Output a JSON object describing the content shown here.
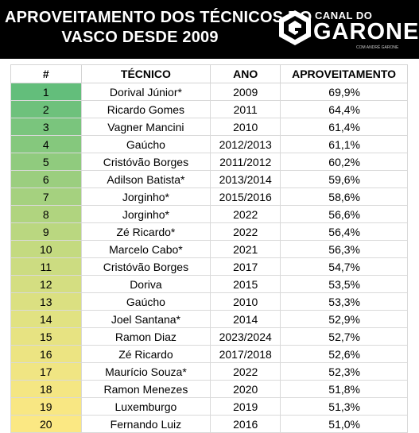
{
  "header": {
    "title_line1": "APROVEITAMENTO DOS TÉCNICOS DO",
    "title_line2": "VASCO DESDE 2009",
    "logo": {
      "top": "CANAL DO",
      "main": "GARONE",
      "sub": "COM ANDRÉ GARONE"
    }
  },
  "table": {
    "columns": [
      "#",
      "TÉCNICO",
      "ANO",
      "APROVEITAMENTO"
    ],
    "rows": [
      {
        "rank": "1",
        "coach": "Dorival Júnior*",
        "year": "2009",
        "pct": "69,9%",
        "color": "#63be7b"
      },
      {
        "rank": "2",
        "coach": "Ricardo Gomes",
        "year": "2011",
        "pct": "64,4%",
        "color": "#6ec17c"
      },
      {
        "rank": "3",
        "coach": "Vagner Mancini",
        "year": "2010",
        "pct": "61,4%",
        "color": "#7ac57d"
      },
      {
        "rank": "4",
        "coach": "Gaúcho",
        "year": "2012/2013",
        "pct": "61,1%",
        "color": "#85c87d"
      },
      {
        "rank": "5",
        "coach": "Cristóvão Borges",
        "year": "2011/2012",
        "pct": "60,2%",
        "color": "#90cb7e"
      },
      {
        "rank": "6",
        "coach": "Adilson Batista*",
        "year": "2013/2014",
        "pct": "59,6%",
        "color": "#9bce7f"
      },
      {
        "rank": "7",
        "coach": "Jorginho*",
        "year": "2015/2016",
        "pct": "58,6%",
        "color": "#a5d17f"
      },
      {
        "rank": "8",
        "coach": "Jorginho*",
        "year": "2022",
        "pct": "56,6%",
        "color": "#b0d47f"
      },
      {
        "rank": "9",
        "coach": "Zé Ricardo*",
        "year": "2022",
        "pct": "56,4%",
        "color": "#bad780"
      },
      {
        "rank": "10",
        "coach": "Marcelo Cabo*",
        "year": "2021",
        "pct": "56,3%",
        "color": "#c4da80"
      },
      {
        "rank": "11",
        "coach": "Cristóvão Borges",
        "year": "2017",
        "pct": "54,7%",
        "color": "#ccdc81"
      },
      {
        "rank": "12",
        "coach": "Doriva",
        "year": "2015",
        "pct": "53,5%",
        "color": "#d4de81"
      },
      {
        "rank": "13",
        "coach": "Gaúcho",
        "year": "2010",
        "pct": "53,3%",
        "color": "#dbe081"
      },
      {
        "rank": "14",
        "coach": "Joel Santana*",
        "year": "2014",
        "pct": "52,9%",
        "color": "#e1e282"
      },
      {
        "rank": "15",
        "coach": "Ramon Diaz",
        "year": "2023/2024",
        "pct": "52,7%",
        "color": "#e7e382"
      },
      {
        "rank": "16",
        "coach": "Zé Ricardo",
        "year": "2017/2018",
        "pct": "52,6%",
        "color": "#ece482"
      },
      {
        "rank": "17",
        "coach": "Maurício Souza*",
        "year": "2022",
        "pct": "52,3%",
        "color": "#f0e583"
      },
      {
        "rank": "18",
        "coach": "Ramon Menezes",
        "year": "2020",
        "pct": "51,8%",
        "color": "#f4e683"
      },
      {
        "rank": "19",
        "coach": "Luxemburgo",
        "year": "2019",
        "pct": "51,3%",
        "color": "#f8e783"
      },
      {
        "rank": "20",
        "coach": "Fernando Luiz",
        "year": "2016",
        "pct": "51,0%",
        "color": "#fbe883"
      }
    ]
  }
}
